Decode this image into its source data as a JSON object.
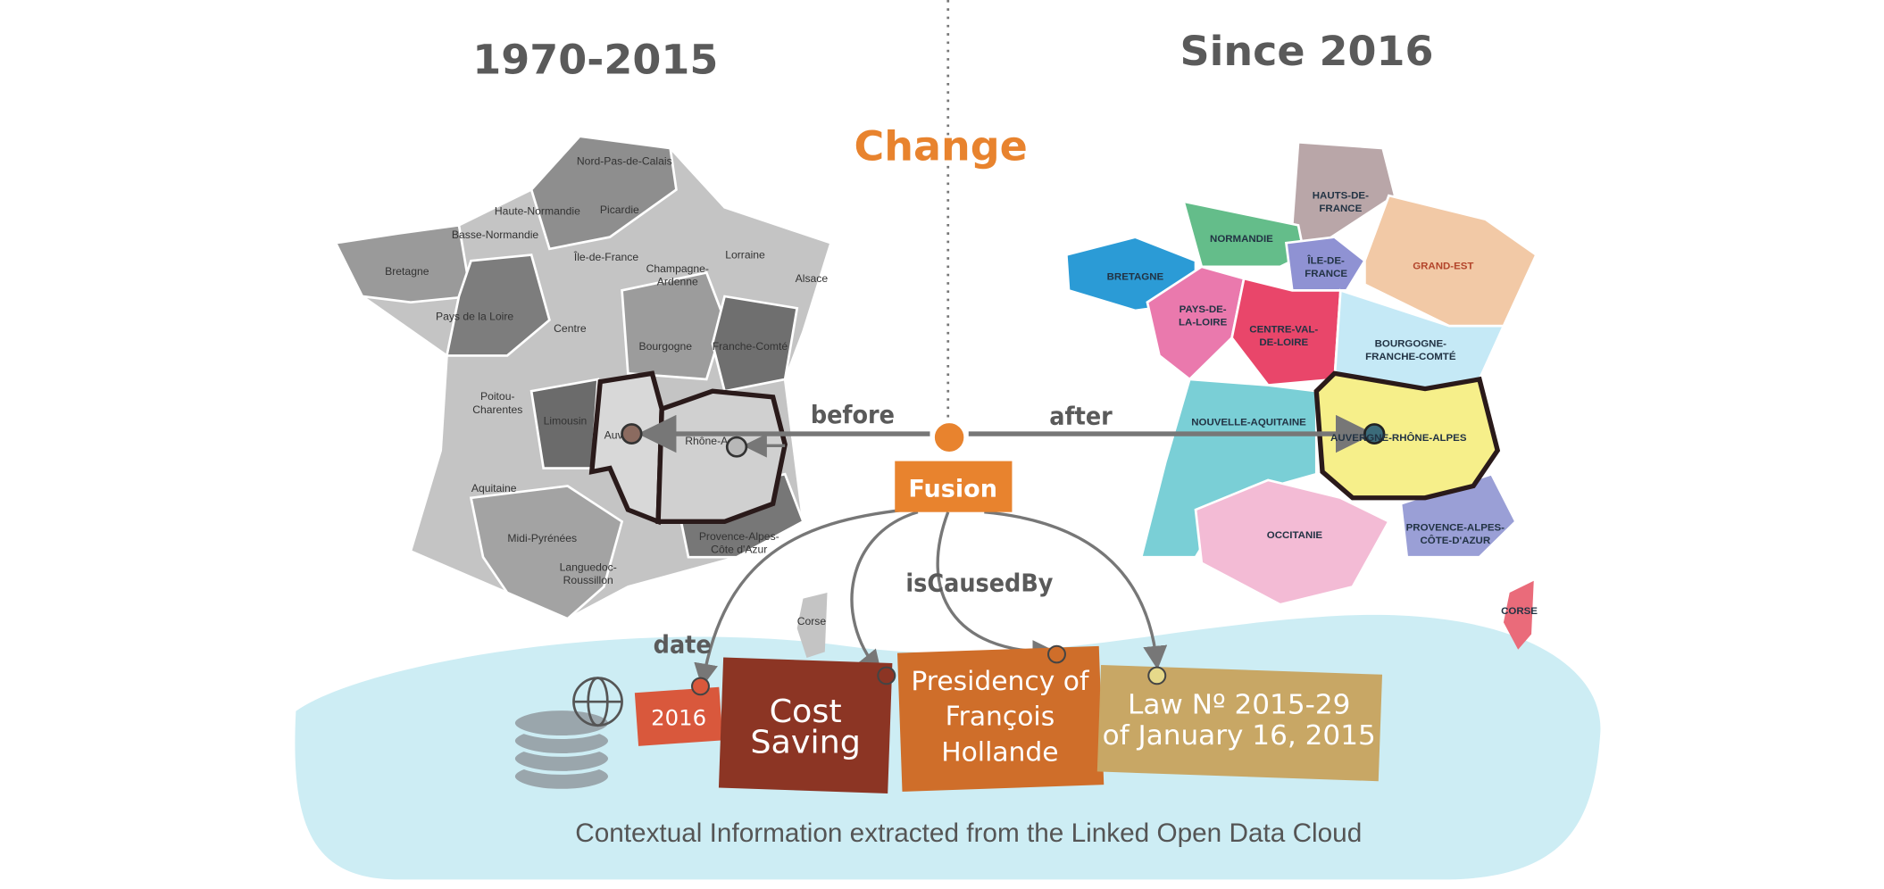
{
  "header": {
    "left_title": "1970-2015",
    "right_title": "Since 2016",
    "center_title": "Change"
  },
  "relations": {
    "event": "Fusion",
    "before": "before",
    "after": "after",
    "date": "date",
    "cause": "isCausedBy"
  },
  "old_regions": [
    {
      "lines": [
        "Nord-Pas-de-Calais"
      ]
    },
    {
      "lines": [
        "Picardie"
      ]
    },
    {
      "lines": [
        "Haute-Normandie"
      ]
    },
    {
      "lines": [
        "Basse-Normandie"
      ]
    },
    {
      "lines": [
        "Bretagne"
      ]
    },
    {
      "lines": [
        "Île-de-France"
      ]
    },
    {
      "lines": [
        "Champagne-",
        "Ardenne"
      ]
    },
    {
      "lines": [
        "Lorraine"
      ]
    },
    {
      "lines": [
        "Alsace"
      ]
    },
    {
      "lines": [
        "Pays de la Loire"
      ]
    },
    {
      "lines": [
        "Centre"
      ]
    },
    {
      "lines": [
        "Bourgogne"
      ]
    },
    {
      "lines": [
        "Franche-Comté"
      ]
    },
    {
      "lines": [
        "Poitou-",
        "Charentes"
      ]
    },
    {
      "lines": [
        "Limousin"
      ]
    },
    {
      "lines": [
        "Auv"
      ]
    },
    {
      "lines": [
        "Rhône-A"
      ]
    },
    {
      "lines": [
        "Aquitaine"
      ]
    },
    {
      "lines": [
        "Midi-Pyrénées"
      ]
    },
    {
      "lines": [
        "Languedoc-",
        "Roussillon"
      ]
    },
    {
      "lines": [
        "Provence-Alpes-",
        "Côte d'Azur"
      ]
    },
    {
      "lines": [
        "Corse"
      ]
    }
  ],
  "new_regions": [
    {
      "lines": [
        "HAUTS-DE-",
        "FRANCE"
      ]
    },
    {
      "lines": [
        "NORMANDIE"
      ]
    },
    {
      "lines": [
        "ÎLE-DE-",
        "FRANCE"
      ]
    },
    {
      "lines": [
        "GRAND-EST"
      ]
    },
    {
      "lines": [
        "BRETAGNE"
      ]
    },
    {
      "lines": [
        "PAYS-DE-",
        "LA-LOIRE"
      ]
    },
    {
      "lines": [
        "CENTRE-VAL-",
        "DE-LOIRE"
      ]
    },
    {
      "lines": [
        "BOURGOGNE-",
        "FRANCHE-COMTÉ"
      ]
    },
    {
      "lines": [
        "NOUVELLE-AQUITAINE"
      ]
    },
    {
      "lines": [
        "AUVERGNE-RHÔNE-ALPES"
      ]
    },
    {
      "lines": [
        "OCCITANIE"
      ]
    },
    {
      "lines": [
        "PROVENCE-ALPES-",
        "CÔTE-D'AZUR"
      ]
    },
    {
      "lines": [
        "CORSE"
      ]
    }
  ],
  "context": [
    {
      "lines": [
        "2016"
      ]
    },
    {
      "lines": [
        "Cost",
        "Saving"
      ]
    },
    {
      "lines": [
        "Presidency of",
        "François",
        "Hollande"
      ]
    },
    {
      "lines": [
        "Law Nº 2015-29",
        "of January 16, 2015"
      ]
    }
  ],
  "footer": {
    "caption": "Contextual Information extracted from the Linked Open Data Cloud"
  }
}
